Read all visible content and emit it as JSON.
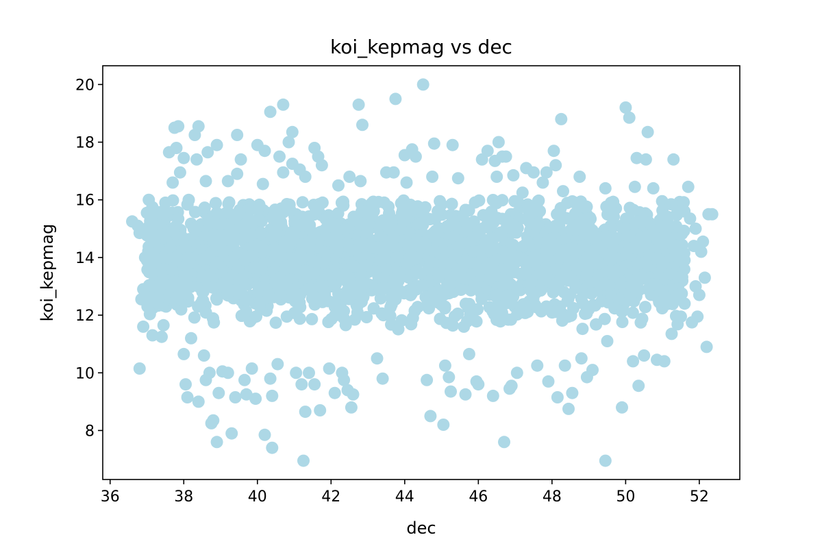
{
  "chart_data": {
    "type": "scatter",
    "title": "koi_kepmag vs dec",
    "xlabel": "dec",
    "ylabel": "koi_kepmag",
    "xlim": [
      35.8,
      53.1
    ],
    "ylim": [
      6.3,
      20.65
    ],
    "xticks": [
      36,
      38,
      40,
      42,
      44,
      46,
      48,
      50,
      52
    ],
    "yticks": [
      8,
      10,
      12,
      14,
      16,
      18,
      20
    ],
    "grid": false,
    "legend": "none",
    "colors": {
      "marker": "#add8e6"
    },
    "dense_region": {
      "x_range": [
        37.0,
        51.6
      ],
      "y_range": [
        11.5,
        16.0
      ]
    },
    "points": [
      [
        36.6,
        15.25
      ],
      [
        36.75,
        15.1
      ],
      [
        36.8,
        14.85
      ],
      [
        36.85,
        12.55
      ],
      [
        36.8,
        10.15
      ],
      [
        36.9,
        11.6
      ],
      [
        36.95,
        14.0
      ],
      [
        36.9,
        12.9
      ],
      [
        37.0,
        15.55
      ],
      [
        37.05,
        16.0
      ],
      [
        37.1,
        13.65
      ],
      [
        37.15,
        11.3
      ],
      [
        37.2,
        14.6
      ],
      [
        37.1,
        12.6
      ],
      [
        37.4,
        11.25
      ],
      [
        37.45,
        11.65
      ],
      [
        37.5,
        15.9
      ],
      [
        37.6,
        17.65
      ],
      [
        37.75,
        18.5
      ],
      [
        37.85,
        18.55
      ],
      [
        37.8,
        17.8
      ],
      [
        37.9,
        16.95
      ],
      [
        37.7,
        16.6
      ],
      [
        38.0,
        17.45
      ],
      [
        38.0,
        10.65
      ],
      [
        38.05,
        9.6
      ],
      [
        38.1,
        9.15
      ],
      [
        38.2,
        11.2
      ],
      [
        38.3,
        18.25
      ],
      [
        38.4,
        18.55
      ],
      [
        38.35,
        17.4
      ],
      [
        38.4,
        9.0
      ],
      [
        38.55,
        10.6
      ],
      [
        38.6,
        9.75
      ],
      [
        38.65,
        17.65
      ],
      [
        38.6,
        16.65
      ],
      [
        38.7,
        10.0
      ],
      [
        38.75,
        8.25
      ],
      [
        38.8,
        8.35
      ],
      [
        38.9,
        7.6
      ],
      [
        38.9,
        17.9
      ],
      [
        38.95,
        9.3
      ],
      [
        39.05,
        10.05
      ],
      [
        39.2,
        16.65
      ],
      [
        39.2,
        10.0
      ],
      [
        39.3,
        7.9
      ],
      [
        39.4,
        9.15
      ],
      [
        39.45,
        18.25
      ],
      [
        39.45,
        16.9
      ],
      [
        39.55,
        17.4
      ],
      [
        39.7,
        9.25
      ],
      [
        39.65,
        9.75
      ],
      [
        39.85,
        10.15
      ],
      [
        39.95,
        9.1
      ],
      [
        40.0,
        17.9
      ],
      [
        40.05,
        15.3
      ],
      [
        40.15,
        16.55
      ],
      [
        40.2,
        17.7
      ],
      [
        40.2,
        7.85
      ],
      [
        40.35,
        9.8
      ],
      [
        40.35,
        19.05
      ],
      [
        40.4,
        7.4
      ],
      [
        40.4,
        9.2
      ],
      [
        40.55,
        10.3
      ],
      [
        40.6,
        17.5
      ],
      [
        40.7,
        19.3
      ],
      [
        40.7,
        16.95
      ],
      [
        40.8,
        15.85
      ],
      [
        40.85,
        18.0
      ],
      [
        40.95,
        18.35
      ],
      [
        40.95,
        17.25
      ],
      [
        41.05,
        10.0
      ],
      [
        41.15,
        17.05
      ],
      [
        41.2,
        9.6
      ],
      [
        41.3,
        8.65
      ],
      [
        41.25,
        6.95
      ],
      [
        41.3,
        16.8
      ],
      [
        41.4,
        10.0
      ],
      [
        41.55,
        9.6
      ],
      [
        41.55,
        17.8
      ],
      [
        41.65,
        17.5
      ],
      [
        41.7,
        8.7
      ],
      [
        41.75,
        17.2
      ],
      [
        41.95,
        10.15
      ],
      [
        42.1,
        9.3
      ],
      [
        42.2,
        16.5
      ],
      [
        42.3,
        10.0
      ],
      [
        42.35,
        9.75
      ],
      [
        42.45,
        9.4
      ],
      [
        42.5,
        16.8
      ],
      [
        42.55,
        8.8
      ],
      [
        42.6,
        9.25
      ],
      [
        42.75,
        19.3
      ],
      [
        42.8,
        16.65
      ],
      [
        42.85,
        18.6
      ],
      [
        43.25,
        10.5
      ],
      [
        43.4,
        9.8
      ],
      [
        43.5,
        16.95
      ],
      [
        43.7,
        16.95
      ],
      [
        43.75,
        19.5
      ],
      [
        44.0,
        17.55
      ],
      [
        44.05,
        16.6
      ],
      [
        44.2,
        17.75
      ],
      [
        44.3,
        17.5
      ],
      [
        44.5,
        20.0
      ],
      [
        44.6,
        9.75
      ],
      [
        44.7,
        8.5
      ],
      [
        44.75,
        16.8
      ],
      [
        44.8,
        17.95
      ],
      [
        45.05,
        8.2
      ],
      [
        45.1,
        10.25
      ],
      [
        45.2,
        9.85
      ],
      [
        45.25,
        9.35
      ],
      [
        45.3,
        17.9
      ],
      [
        45.45,
        16.75
      ],
      [
        45.65,
        9.25
      ],
      [
        45.75,
        10.65
      ],
      [
        45.95,
        9.7
      ],
      [
        46.0,
        9.6
      ],
      [
        46.1,
        17.4
      ],
      [
        46.25,
        17.7
      ],
      [
        46.4,
        9.2
      ],
      [
        46.45,
        17.35
      ],
      [
        46.5,
        16.8
      ],
      [
        46.55,
        18.0
      ],
      [
        46.65,
        17.5
      ],
      [
        46.7,
        7.6
      ],
      [
        46.75,
        17.5
      ],
      [
        46.85,
        9.45
      ],
      [
        46.9,
        9.55
      ],
      [
        46.95,
        16.85
      ],
      [
        47.05,
        10.0
      ],
      [
        47.2,
        16.25
      ],
      [
        47.3,
        17.1
      ],
      [
        47.5,
        16.95
      ],
      [
        47.6,
        10.25
      ],
      [
        47.75,
        16.6
      ],
      [
        47.85,
        16.95
      ],
      [
        47.9,
        9.7
      ],
      [
        48.05,
        17.7
      ],
      [
        48.1,
        17.2
      ],
      [
        48.15,
        9.15
      ],
      [
        48.25,
        18.8
      ],
      [
        48.3,
        16.3
      ],
      [
        48.35,
        10.25
      ],
      [
        48.45,
        8.75
      ],
      [
        48.55,
        9.3
      ],
      [
        48.75,
        16.8
      ],
      [
        48.8,
        10.5
      ],
      [
        48.95,
        9.85
      ],
      [
        49.1,
        10.1
      ],
      [
        49.45,
        16.4
      ],
      [
        49.45,
        6.95
      ],
      [
        49.5,
        11.1
      ],
      [
        49.9,
        8.8
      ],
      [
        50.0,
        19.2
      ],
      [
        50.1,
        18.85
      ],
      [
        50.2,
        10.4
      ],
      [
        50.25,
        16.45
      ],
      [
        50.3,
        17.45
      ],
      [
        50.35,
        9.55
      ],
      [
        50.5,
        10.6
      ],
      [
        50.55,
        17.4
      ],
      [
        50.6,
        18.35
      ],
      [
        50.75,
        16.4
      ],
      [
        50.85,
        10.45
      ],
      [
        51.05,
        10.4
      ],
      [
        51.25,
        11.35
      ],
      [
        51.3,
        17.4
      ],
      [
        51.5,
        11.95
      ],
      [
        51.7,
        16.45
      ],
      [
        51.75,
        15.35
      ],
      [
        51.95,
        11.95
      ],
      [
        52.0,
        12.7
      ],
      [
        52.1,
        14.55
      ],
      [
        52.15,
        13.3
      ],
      [
        52.2,
        10.9
      ],
      [
        52.25,
        15.5
      ],
      [
        52.35,
        15.5
      ],
      [
        51.6,
        12.4
      ],
      [
        51.85,
        14.4
      ],
      [
        51.9,
        13.0
      ],
      [
        52.05,
        14.2
      ],
      [
        51.8,
        11.75
      ],
      [
        51.9,
        15.0
      ]
    ]
  }
}
